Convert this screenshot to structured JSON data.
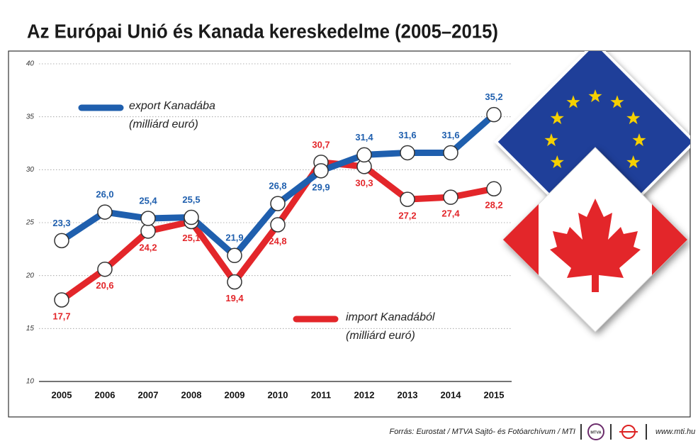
{
  "chart_data": {
    "type": "line",
    "title": "Az Európai Unió és Kanada kereskedelme (2005–2015)",
    "categories": [
      "2005",
      "2006",
      "2007",
      "2008",
      "2009",
      "2010",
      "2011",
      "2012",
      "2013",
      "2014",
      "2015"
    ],
    "series": [
      {
        "name": "export Kanadába",
        "unit": "(milliárd euró)",
        "color": "#1f5fae",
        "values": [
          23.3,
          26.0,
          25.4,
          25.5,
          21.9,
          26.8,
          29.9,
          31.4,
          31.6,
          31.6,
          35.2
        ],
        "value_labels": [
          "23,3",
          "26,0",
          "25,4",
          "25,5",
          "21,9",
          "26,8",
          "29,9",
          "31,4",
          "31,6",
          "31,6",
          "35,2"
        ]
      },
      {
        "name": "import Kanadából",
        "unit": "(milliárd euró)",
        "color": "#e3262a",
        "values": [
          17.7,
          20.6,
          24.2,
          25.1,
          19.4,
          24.8,
          30.7,
          30.3,
          27.2,
          27.4,
          28.2
        ],
        "value_labels": [
          "17,7",
          "20,6",
          "24,2",
          "25,1",
          "19,4",
          "24,8",
          "30,7",
          "30,3",
          "27,2",
          "27,4",
          "28,2"
        ]
      }
    ],
    "ylim": [
      10,
      40
    ],
    "yticks": [
      10,
      15,
      20,
      25,
      30,
      35,
      40
    ],
    "grid": true
  },
  "footer": {
    "source": "Forrás: Eurostat / MTVA Sajtó- és Fotóarchívum / MTI",
    "logo": "MTVA",
    "url": "www.mti.hu"
  }
}
